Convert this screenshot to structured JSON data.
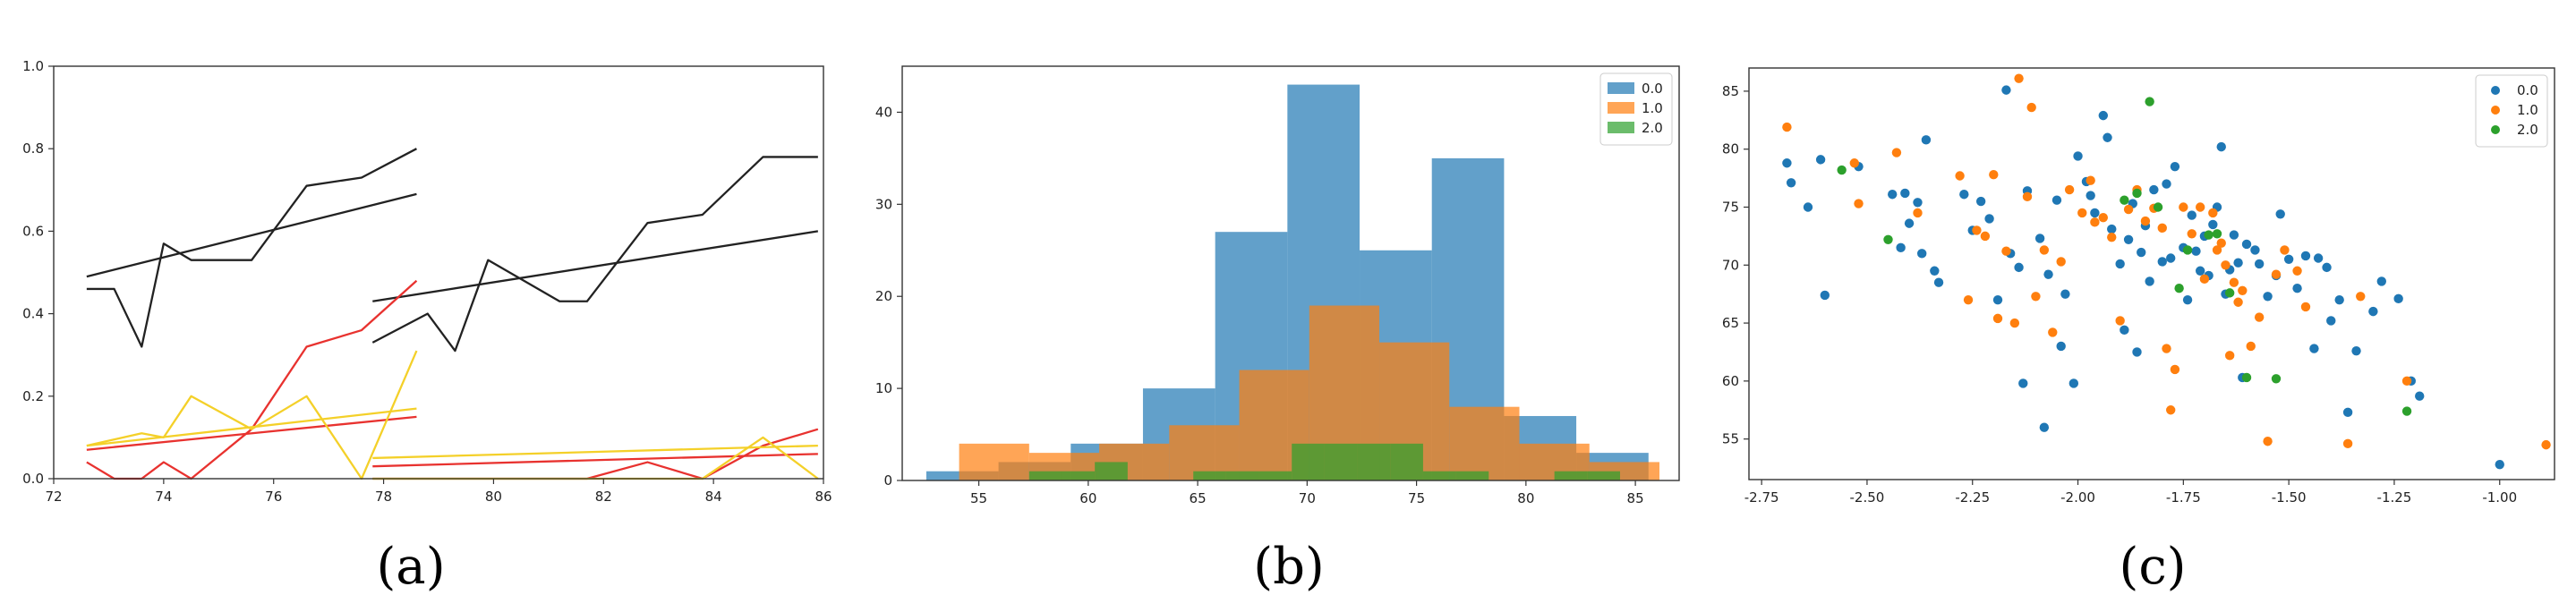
{
  "panel_labels": [
    "(a)",
    "(b)",
    "(c)"
  ],
  "chart_data": [
    {
      "type": "line",
      "xlim": [
        72,
        86
      ],
      "ylim": [
        0,
        1
      ],
      "xticks": [
        "72",
        "74",
        "76",
        "78",
        "80",
        "82",
        "84",
        "86"
      ],
      "yticks": [
        "0.0",
        "0.2",
        "0.4",
        "0.6",
        "0.8",
        "1.0"
      ],
      "grid": false,
      "series": [
        {
          "color": "#222222",
          "x": [
            72.6,
            73.1,
            73.6,
            74.0,
            74.5,
            75.6,
            76.6,
            77.6,
            78.6
          ],
          "y": [
            0.46,
            0.46,
            0.32,
            0.57,
            0.53,
            0.53,
            0.71,
            0.73,
            0.8
          ]
        },
        {
          "color": "#222222",
          "x": [
            72.6,
            78.6
          ],
          "y": [
            0.49,
            0.69
          ]
        },
        {
          "color": "#222222",
          "x": [
            77.8,
            78.8,
            79.3,
            79.9,
            81.2,
            81.7,
            82.8,
            83.8,
            84.9,
            85.9
          ],
          "y": [
            0.33,
            0.4,
            0.31,
            0.53,
            0.43,
            0.43,
            0.62,
            0.64,
            0.78,
            0.78
          ]
        },
        {
          "color": "#222222",
          "x": [
            77.8,
            85.9
          ],
          "y": [
            0.43,
            0.6
          ]
        },
        {
          "color": "#e8322f",
          "x": [
            72.6,
            73.1,
            73.6,
            74.0,
            74.5,
            75.6,
            76.6,
            77.6,
            78.6
          ],
          "y": [
            0.04,
            0.0,
            0.0,
            0.04,
            0.0,
            0.12,
            0.32,
            0.36,
            0.48
          ]
        },
        {
          "color": "#e8322f",
          "x": [
            72.6,
            78.6
          ],
          "y": [
            0.07,
            0.15
          ]
        },
        {
          "color": "#e8322f",
          "x": [
            77.8,
            81.7,
            82.8,
            83.8,
            84.9,
            85.9
          ],
          "y": [
            0.0,
            0.0,
            0.04,
            0.0,
            0.08,
            0.12
          ]
        },
        {
          "color": "#e8322f",
          "x": [
            77.8,
            85.9
          ],
          "y": [
            0.03,
            0.06
          ]
        },
        {
          "color": "#f4d029",
          "x": [
            72.6,
            73.6,
            74.0,
            74.5,
            75.6,
            76.6,
            77.6,
            78.6
          ],
          "y": [
            0.08,
            0.11,
            0.1,
            0.2,
            0.12,
            0.2,
            0.0,
            0.31
          ]
        },
        {
          "color": "#f4d029",
          "x": [
            72.6,
            78.6
          ],
          "y": [
            0.08,
            0.17
          ]
        },
        {
          "color": "#f4d029",
          "x": [
            77.8,
            83.8,
            84.9,
            85.9
          ],
          "y": [
            0.0,
            0.0,
            0.1,
            0.0
          ]
        },
        {
          "color": "#f4d029",
          "x": [
            77.8,
            85.9
          ],
          "y": [
            0.05,
            0.08
          ]
        }
      ]
    },
    {
      "type": "histogram",
      "xlim": [
        51.5,
        87
      ],
      "ylim": [
        0,
        45
      ],
      "xticks": [
        55,
        60,
        65,
        70,
        75,
        80,
        85
      ],
      "yticks": [
        0,
        10,
        20,
        30,
        40
      ],
      "legend_position": "top-right",
      "series": [
        {
          "name": "0.0",
          "color": "#1f77b4",
          "bins": [
            52.6,
            55.9,
            59.2,
            62.5,
            65.8,
            69.1,
            72.4,
            75.7,
            79.0,
            82.3,
            85.6
          ],
          "counts": [
            1,
            2,
            4,
            10,
            27,
            43,
            25,
            35,
            7,
            3
          ]
        },
        {
          "name": "1.0",
          "color": "#ff7f0e",
          "bins": [
            54.1,
            57.3,
            60.5,
            63.7,
            66.9,
            70.1,
            73.3,
            76.5,
            79.7,
            82.9,
            86.1
          ],
          "counts": [
            4,
            3,
            4,
            6,
            12,
            19,
            15,
            8,
            4,
            2
          ]
        },
        {
          "name": "2.0",
          "color": "#2ca02c",
          "bins": [
            57.3,
            58.8,
            60.3,
            61.8,
            63.3,
            64.8,
            66.3,
            67.8,
            69.3,
            70.8,
            72.3,
            73.8,
            75.3,
            76.8,
            78.3,
            79.8,
            81.3,
            82.8,
            84.3
          ],
          "counts": [
            1,
            1,
            2,
            0,
            0,
            1,
            1,
            1,
            4,
            4,
            4,
            4,
            1,
            1,
            0,
            0,
            1,
            1
          ]
        }
      ]
    },
    {
      "type": "scatter",
      "xlim": [
        -2.78,
        -0.87
      ],
      "ylim": [
        51.5,
        87
      ],
      "xticks": [
        "-2.75",
        "-2.50",
        "-2.25",
        "-2.00",
        "-1.75",
        "-1.50",
        "-1.25",
        "-1.00"
      ],
      "yticks": [
        "55",
        "60",
        "65",
        "70",
        "75",
        "80",
        "85"
      ],
      "legend_position": "top-right",
      "series": [
        {
          "name": "0.0",
          "color": "#1f77b4",
          "points": [
            [
              -2.69,
              78.8
            ],
            [
              -2.68,
              77.1
            ],
            [
              -2.64,
              75.0
            ],
            [
              -2.61,
              79.1
            ],
            [
              -2.6,
              67.4
            ],
            [
              -2.52,
              78.5
            ],
            [
              -2.44,
              76.1
            ],
            [
              -2.42,
              71.5
            ],
            [
              -2.41,
              76.2
            ],
            [
              -2.4,
              73.6
            ],
            [
              -2.38,
              75.4
            ],
            [
              -2.37,
              71.0
            ],
            [
              -2.36,
              80.8
            ],
            [
              -2.34,
              69.5
            ],
            [
              -2.33,
              68.5
            ],
            [
              -2.27,
              76.1
            ],
            [
              -2.25,
              73.0
            ],
            [
              -2.23,
              75.5
            ],
            [
              -2.21,
              74.0
            ],
            [
              -2.19,
              67.0
            ],
            [
              -2.17,
              85.1
            ],
            [
              -2.16,
              71.0
            ],
            [
              -2.14,
              69.8
            ],
            [
              -2.13,
              59.8
            ],
            [
              -2.12,
              76.4
            ],
            [
              -2.09,
              72.3
            ],
            [
              -2.08,
              56.0
            ],
            [
              -2.07,
              69.2
            ],
            [
              -2.05,
              75.6
            ],
            [
              -2.04,
              63.0
            ],
            [
              -2.03,
              67.5
            ],
            [
              -2.01,
              59.8
            ],
            [
              -2.0,
              79.4
            ],
            [
              -1.98,
              77.2
            ],
            [
              -1.97,
              76.0
            ],
            [
              -1.96,
              74.5
            ],
            [
              -1.94,
              82.9
            ],
            [
              -1.93,
              81.0
            ],
            [
              -1.92,
              73.1
            ],
            [
              -1.9,
              70.1
            ],
            [
              -1.89,
              64.4
            ],
            [
              -1.88,
              72.2
            ],
            [
              -1.87,
              75.3
            ],
            [
              -1.86,
              62.5
            ],
            [
              -1.85,
              71.1
            ],
            [
              -1.84,
              73.4
            ],
            [
              -1.83,
              68.6
            ],
            [
              -1.82,
              76.5
            ],
            [
              -1.8,
              70.3
            ],
            [
              -1.79,
              77.0
            ],
            [
              -1.78,
              70.6
            ],
            [
              -1.77,
              78.5
            ],
            [
              -1.75,
              71.5
            ],
            [
              -1.74,
              67.0
            ],
            [
              -1.73,
              74.3
            ],
            [
              -1.72,
              71.2
            ],
            [
              -1.71,
              69.5
            ],
            [
              -1.7,
              72.5
            ],
            [
              -1.69,
              69.1
            ],
            [
              -1.68,
              73.5
            ],
            [
              -1.67,
              75.0
            ],
            [
              -1.66,
              80.2
            ],
            [
              -1.65,
              67.5
            ],
            [
              -1.64,
              69.6
            ],
            [
              -1.63,
              72.6
            ],
            [
              -1.62,
              70.2
            ],
            [
              -1.61,
              60.3
            ],
            [
              -1.6,
              71.8
            ],
            [
              -1.58,
              71.3
            ],
            [
              -1.57,
              70.1
            ],
            [
              -1.55,
              67.3
            ],
            [
              -1.53,
              69.1
            ],
            [
              -1.52,
              74.4
            ],
            [
              -1.5,
              70.5
            ],
            [
              -1.48,
              68.0
            ],
            [
              -1.46,
              70.8
            ],
            [
              -1.44,
              62.8
            ],
            [
              -1.43,
              70.6
            ],
            [
              -1.41,
              69.8
            ],
            [
              -1.4,
              65.2
            ],
            [
              -1.38,
              67.0
            ],
            [
              -1.36,
              57.3
            ],
            [
              -1.34,
              62.6
            ],
            [
              -1.3,
              66.0
            ],
            [
              -1.28,
              68.6
            ],
            [
              -1.24,
              67.1
            ],
            [
              -1.21,
              60.0
            ],
            [
              -1.19,
              58.7
            ],
            [
              -1.0,
              52.8
            ]
          ]
        },
        {
          "name": "1.0",
          "color": "#ff7f0e",
          "points": [
            [
              -2.69,
              81.9
            ],
            [
              -2.53,
              78.8
            ],
            [
              -2.52,
              75.3
            ],
            [
              -2.43,
              79.7
            ],
            [
              -2.38,
              74.5
            ],
            [
              -2.28,
              77.7
            ],
            [
              -2.26,
              67.0
            ],
            [
              -2.24,
              73.0
            ],
            [
              -2.22,
              72.5
            ],
            [
              -2.2,
              77.8
            ],
            [
              -2.19,
              65.4
            ],
            [
              -2.17,
              71.2
            ],
            [
              -2.15,
              65.0
            ],
            [
              -2.14,
              86.1
            ],
            [
              -2.12,
              75.9
            ],
            [
              -2.11,
              83.6
            ],
            [
              -2.1,
              67.3
            ],
            [
              -2.08,
              71.3
            ],
            [
              -2.06,
              64.2
            ],
            [
              -2.04,
              70.3
            ],
            [
              -2.02,
              76.5
            ],
            [
              -1.99,
              74.5
            ],
            [
              -1.97,
              77.3
            ],
            [
              -1.96,
              73.7
            ],
            [
              -1.94,
              74.1
            ],
            [
              -1.92,
              72.4
            ],
            [
              -1.9,
              65.2
            ],
            [
              -1.88,
              74.8
            ],
            [
              -1.86,
              76.5
            ],
            [
              -1.84,
              73.8
            ],
            [
              -1.82,
              74.9
            ],
            [
              -1.8,
              73.2
            ],
            [
              -1.79,
              62.8
            ],
            [
              -1.78,
              57.5
            ],
            [
              -1.77,
              61.0
            ],
            [
              -1.75,
              75.0
            ],
            [
              -1.73,
              72.7
            ],
            [
              -1.71,
              75.0
            ],
            [
              -1.7,
              68.8
            ],
            [
              -1.68,
              74.5
            ],
            [
              -1.67,
              71.3
            ],
            [
              -1.66,
              71.9
            ],
            [
              -1.65,
              70.0
            ],
            [
              -1.64,
              62.2
            ],
            [
              -1.63,
              68.5
            ],
            [
              -1.62,
              66.8
            ],
            [
              -1.61,
              67.8
            ],
            [
              -1.59,
              63.0
            ],
            [
              -1.57,
              65.5
            ],
            [
              -1.55,
              54.8
            ],
            [
              -1.53,
              69.2
            ],
            [
              -1.51,
              71.3
            ],
            [
              -1.48,
              69.5
            ],
            [
              -1.46,
              66.4
            ],
            [
              -1.36,
              54.6
            ],
            [
              -1.33,
              67.3
            ],
            [
              -1.22,
              60.0
            ],
            [
              -0.89,
              54.5
            ]
          ]
        },
        {
          "name": "2.0",
          "color": "#2ca02c",
          "points": [
            [
              -2.56,
              78.2
            ],
            [
              -2.45,
              72.2
            ],
            [
              -1.89,
              75.6
            ],
            [
              -1.86,
              76.2
            ],
            [
              -1.83,
              84.1
            ],
            [
              -1.81,
              75.0
            ],
            [
              -1.76,
              68.0
            ],
            [
              -1.74,
              71.3
            ],
            [
              -1.69,
              72.6
            ],
            [
              -1.67,
              72.7
            ],
            [
              -1.64,
              67.6
            ],
            [
              -1.6,
              60.3
            ],
            [
              -1.53,
              60.2
            ],
            [
              -1.22,
              57.4
            ]
          ]
        }
      ]
    }
  ]
}
